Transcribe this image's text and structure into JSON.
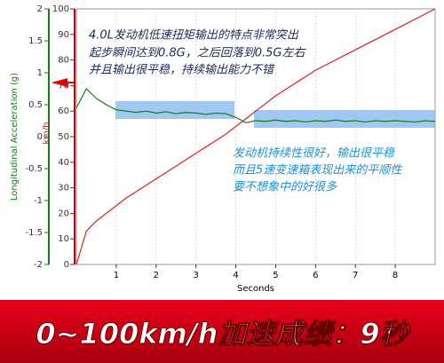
{
  "chart_data": {
    "type": "line",
    "xlabel": "Seconds",
    "ylabel": "km/h",
    "y2label": "Longitudinal Acceleration (g)",
    "x": [
      0,
      0.25,
      0.5,
      0.75,
      1,
      1.25,
      1.5,
      1.75,
      2,
      2.25,
      2.5,
      2.75,
      3,
      3.25,
      3.5,
      3.75,
      4,
      4.25,
      4.5,
      4.75,
      5,
      5.25,
      5.5,
      5.75,
      6,
      6.25,
      6.5,
      6.75,
      7,
      7.25,
      7.5,
      7.75,
      8,
      8.25,
      8.5,
      8.75,
      9
    ],
    "series": [
      {
        "name": "km/h",
        "color": "#e02020",
        "values": [
          0,
          13,
          17,
          20,
          23,
          26,
          28.5,
          31,
          33.5,
          36,
          38.5,
          41,
          43.5,
          46,
          48.5,
          51,
          54,
          57,
          60,
          63,
          66,
          68.5,
          71,
          73.5,
          76,
          78,
          80,
          82,
          84,
          86,
          88,
          90,
          92,
          94,
          96,
          98,
          100
        ]
      },
      {
        "name": "Longitudinal Acceleration (g)",
        "color": "#1a7a1a",
        "axis": "y2",
        "values": [
          0.45,
          0.75,
          0.6,
          0.5,
          0.42,
          0.4,
          0.38,
          0.4,
          0.37,
          0.39,
          0.36,
          0.38,
          0.37,
          0.35,
          0.37,
          0.36,
          0.3,
          0.22,
          0.25,
          0.24,
          0.26,
          0.24,
          0.25,
          0.23,
          0.25,
          0.24,
          0.26,
          0.24,
          0.25,
          0.23,
          0.25,
          0.24,
          0.25,
          0.24,
          0.23,
          0.25,
          0.24
        ]
      }
    ],
    "xlim": [
      0,
      9
    ],
    "xticks": [
      1,
      2,
      3,
      4,
      5,
      6,
      7,
      8
    ],
    "ylim": [
      0,
      100
    ],
    "yticks": [
      0,
      10,
      20,
      30,
      40,
      50,
      60,
      70,
      80,
      90,
      100
    ],
    "y2lim": [
      -2,
      2
    ],
    "y2ticks": [
      -2,
      -1.5,
      -1,
      -0.5,
      0,
      0.5,
      1,
      1.5,
      2
    ],
    "grid": true,
    "annotations": [
      [
        "4.0L发动机低速扭矩输出的特点非常突出",
        "起步瞬间达到0.8G，之后回落到0.5G左右",
        "并且输出很平稳，持续输出能力不错"
      ],
      [
        "发动机持续性很好，输出很平稳",
        "而且5速变速箱表现出来的平顺性",
        "要不想象中的好很多"
      ]
    ]
  },
  "banner": "0~100km/h加速成绩：9秒"
}
